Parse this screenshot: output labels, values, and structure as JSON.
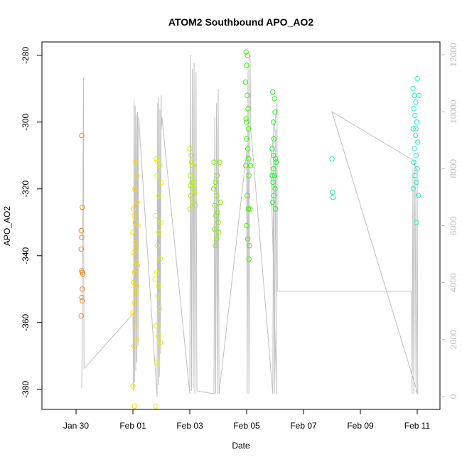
{
  "chart_data": {
    "type": "scatter",
    "title": "ATOM2 Southbound APO_AO2",
    "xlabel": "Date",
    "ylabel": "APO_AO2",
    "x_ticks": [
      "Jan 30",
      "Feb 01",
      "Feb 03",
      "Feb 05",
      "Feb 07",
      "Feb 09",
      "Feb 11"
    ],
    "x_tick_values": [
      2,
      4,
      6,
      8,
      10,
      12,
      14
    ],
    "xlim": [
      0.8,
      14.8
    ],
    "y_ticks": [
      -380,
      -360,
      -340,
      -320,
      -300,
      -280
    ],
    "ylim": [
      -386,
      -276
    ],
    "y2_ticks": [
      0,
      2000,
      4000,
      6000,
      8000,
      10000,
      12000
    ],
    "y2lim": [
      -450,
      12450
    ],
    "grid": false,
    "series": [
      {
        "color": "#ee8a2a",
        "points": [
          [
            2.2,
            -304
          ],
          [
            2.22,
            -325.5
          ],
          [
            2.18,
            -332.5
          ],
          [
            2.2,
            -334.5
          ],
          [
            2.18,
            -338
          ],
          [
            2.2,
            -344.5
          ],
          [
            2.22,
            -345
          ],
          [
            2.24,
            -345.5
          ],
          [
            2.22,
            -350
          ],
          [
            2.2,
            -352.5
          ],
          [
            2.22,
            -353.5
          ],
          [
            2.18,
            -358
          ]
        ]
      },
      {
        "color": "#ffd700",
        "points": [
          [
            4.02,
            -326
          ],
          [
            4.05,
            -328
          ],
          [
            4.08,
            -330
          ],
          [
            4.0,
            -333
          ],
          [
            4.1,
            -336
          ],
          [
            4.04,
            -339
          ],
          [
            4.12,
            -342
          ],
          [
            4.06,
            -345
          ],
          [
            4.02,
            -348
          ],
          [
            4.1,
            -351
          ],
          [
            4.05,
            -354
          ],
          [
            4.0,
            -357
          ],
          [
            4.08,
            -361
          ],
          [
            4.12,
            -365
          ],
          [
            4.04,
            -367
          ],
          [
            4.0,
            -379
          ],
          [
            4.06,
            -385
          ],
          [
            4.1,
            -312
          ],
          [
            4.14,
            -316
          ],
          [
            4.07,
            -320
          ],
          [
            4.15,
            -324
          ],
          [
            4.11,
            -338
          ],
          [
            4.16,
            -343
          ],
          [
            4.13,
            -349
          ],
          [
            4.09,
            -358
          ],
          [
            4.18,
            -331
          ]
        ]
      },
      {
        "color": "#e6f400",
        "points": [
          [
            4.82,
            -311
          ],
          [
            4.88,
            -312
          ],
          [
            4.95,
            -313
          ],
          [
            4.85,
            -316
          ],
          [
            4.9,
            -322
          ],
          [
            4.8,
            -328
          ],
          [
            4.92,
            -333
          ],
          [
            4.86,
            -337
          ],
          [
            4.96,
            -341
          ],
          [
            4.84,
            -345
          ],
          [
            4.9,
            -349
          ],
          [
            4.88,
            -352
          ],
          [
            4.94,
            -356
          ],
          [
            4.82,
            -361
          ],
          [
            4.9,
            -364
          ],
          [
            4.96,
            -366
          ],
          [
            4.86,
            -372
          ],
          [
            4.8,
            -385
          ],
          [
            4.98,
            -330
          ],
          [
            5.0,
            -318
          ],
          [
            4.78,
            -347
          ]
        ]
      },
      {
        "color": "#b6f000",
        "points": [
          [
            6.0,
            -308
          ],
          [
            6.05,
            -310
          ],
          [
            6.1,
            -313
          ],
          [
            6.02,
            -316
          ],
          [
            6.08,
            -318
          ],
          [
            6.12,
            -320
          ],
          [
            6.04,
            -322
          ],
          [
            6.1,
            -324
          ],
          [
            6.0,
            -326
          ],
          [
            6.14,
            -318
          ],
          [
            6.06,
            -312
          ],
          [
            6.16,
            -321
          ],
          [
            6.02,
            -319
          ],
          [
            6.2,
            -325
          ]
        ]
      },
      {
        "color": "#7cf000",
        "points": [
          [
            6.85,
            -312
          ],
          [
            6.9,
            -318
          ],
          [
            6.95,
            -322
          ],
          [
            6.88,
            -325
          ],
          [
            6.92,
            -328
          ],
          [
            7.0,
            -330
          ],
          [
            6.86,
            -332
          ],
          [
            6.94,
            -335
          ],
          [
            6.9,
            -337
          ],
          [
            7.02,
            -333
          ],
          [
            6.98,
            -327
          ],
          [
            6.84,
            -320
          ],
          [
            6.96,
            -316
          ],
          [
            7.05,
            -312
          ],
          [
            7.08,
            -324
          ]
        ]
      },
      {
        "color": "#3cf000",
        "points": [
          [
            7.98,
            -279
          ],
          [
            8.03,
            -280
          ],
          [
            8.0,
            -283
          ],
          [
            7.96,
            -288
          ],
          [
            8.02,
            -292
          ],
          [
            8.05,
            -296
          ],
          [
            7.98,
            -299
          ],
          [
            8.06,
            -302
          ],
          [
            8.0,
            -305
          ],
          [
            8.04,
            -308
          ],
          [
            8.07,
            -311
          ],
          [
            7.97,
            -313
          ],
          [
            8.08,
            -316
          ],
          [
            8.02,
            -322
          ],
          [
            8.06,
            -326
          ],
          [
            8.0,
            -331
          ],
          [
            8.04,
            -335
          ],
          [
            8.1,
            -337
          ],
          [
            8.08,
            -341
          ],
          [
            8.12,
            -326
          ],
          [
            8.14,
            -313
          ],
          [
            8.0,
            -300
          ]
        ]
      },
      {
        "color": "#22ee30",
        "points": [
          [
            8.92,
            -291
          ],
          [
            8.98,
            -293
          ],
          [
            9.0,
            -297
          ],
          [
            8.94,
            -300
          ],
          [
            8.96,
            -305
          ],
          [
            8.9,
            -308
          ],
          [
            9.02,
            -311
          ],
          [
            8.95,
            -314
          ],
          [
            8.98,
            -316
          ],
          [
            8.93,
            -318
          ],
          [
            9.0,
            -320
          ],
          [
            8.96,
            -322
          ],
          [
            8.92,
            -324
          ],
          [
            9.02,
            -326
          ],
          [
            8.94,
            -310
          ],
          [
            9.04,
            -312
          ],
          [
            8.9,
            -316
          ]
        ]
      },
      {
        "color": "#22f2a0",
        "points": [
          [
            11.0,
            -311
          ],
          [
            11.02,
            -321
          ],
          [
            11.04,
            -322.5
          ]
        ]
      },
      {
        "color": "#22f0c0",
        "points": [
          [
            13.85,
            -290
          ],
          [
            13.9,
            -292
          ],
          [
            13.95,
            -294
          ],
          [
            14.0,
            -287
          ],
          [
            13.88,
            -296
          ],
          [
            13.92,
            -298
          ],
          [
            13.98,
            -300
          ],
          [
            13.86,
            -302
          ],
          [
            13.94,
            -304
          ],
          [
            14.02,
            -306
          ],
          [
            13.9,
            -308
          ],
          [
            13.96,
            -310
          ],
          [
            13.88,
            -312
          ],
          [
            14.0,
            -314
          ],
          [
            13.92,
            -316
          ],
          [
            13.98,
            -318
          ],
          [
            13.86,
            -320
          ],
          [
            14.04,
            -322
          ],
          [
            13.95,
            -302
          ],
          [
            14.06,
            -292
          ],
          [
            13.98,
            -330
          ]
        ]
      }
    ],
    "secondary_line": {
      "color": "#c0c0c0",
      "points": [
        [
          2.2,
          300
        ],
        [
          2.22,
          2000
        ],
        [
          2.26,
          11200
        ],
        [
          2.28,
          1000
        ],
        [
          2.3,
          1000
        ],
        [
          4.0,
          2900
        ],
        [
          4.02,
          200
        ],
        [
          4.04,
          10400
        ],
        [
          4.06,
          500
        ],
        [
          4.08,
          10200
        ],
        [
          4.1,
          900
        ],
        [
          4.12,
          9900
        ],
        [
          4.14,
          1200
        ],
        [
          4.16,
          10000
        ],
        [
          4.18,
          1800
        ],
        [
          4.2,
          9800
        ],
        [
          4.85,
          0
        ],
        [
          4.87,
          10300
        ],
        [
          4.89,
          400
        ],
        [
          4.91,
          10500
        ],
        [
          4.93,
          700
        ],
        [
          4.95,
          10100
        ],
        [
          4.97,
          1500
        ],
        [
          4.99,
          10600
        ],
        [
          5.0,
          9400
        ],
        [
          5.02,
          9800
        ],
        [
          6.0,
          100
        ],
        [
          6.03,
          12000
        ],
        [
          6.06,
          200
        ],
        [
          6.09,
          11500
        ],
        [
          6.12,
          300
        ],
        [
          6.15,
          11700
        ],
        [
          6.18,
          100
        ],
        [
          6.22,
          11400
        ],
        [
          6.25,
          200
        ],
        [
          6.85,
          100
        ],
        [
          6.88,
          9800
        ],
        [
          6.91,
          100
        ],
        [
          6.94,
          10300
        ],
        [
          6.97,
          100
        ],
        [
          7.0,
          10800
        ],
        [
          7.03,
          100
        ],
        [
          8.0,
          8600
        ],
        [
          8.02,
          100
        ],
        [
          8.05,
          11600
        ],
        [
          8.08,
          100
        ],
        [
          8.12,
          12000
        ],
        [
          8.15,
          9300
        ],
        [
          8.18,
          9000
        ],
        [
          8.92,
          100
        ],
        [
          8.95,
          9600
        ],
        [
          8.98,
          100
        ],
        [
          9.02,
          9400
        ],
        [
          9.05,
          100
        ],
        [
          8.85,
          8300
        ],
        [
          9.07,
          10300
        ],
        [
          9.08,
          3700
        ],
        [
          12.1,
          3700
        ],
        [
          13.8,
          3700
        ],
        [
          13.82,
          100
        ],
        [
          13.85,
          8000
        ],
        [
          13.88,
          100
        ],
        [
          13.92,
          8300
        ],
        [
          13.96,
          100
        ],
        [
          14.0,
          8000
        ],
        [
          14.02,
          100
        ],
        [
          11.0,
          10000
        ],
        [
          13.85,
          8300
        ],
        [
          14.0,
          7900
        ]
      ]
    }
  }
}
